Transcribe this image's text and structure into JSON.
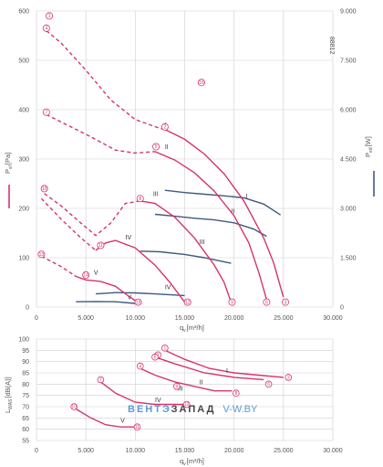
{
  "chart_data": [
    {
      "type": "line",
      "id_label": "88812",
      "xlabel": "q",
      "xlabel_sub": "v",
      "xlabel_unit": "[m³/h]",
      "ylabel": "P",
      "ylabel_sub": "sf",
      "ylabel_unit": "[Pa]",
      "y2label": "P",
      "y2label_sub": "ed",
      "y2label_unit": "[W]",
      "xlim": [
        0,
        30000
      ],
      "ylim": [
        0,
        600
      ],
      "y2lim": [
        0,
        9000
      ],
      "x_ticks": [
        0,
        5000,
        10000,
        15000,
        20000,
        25000,
        30000
      ],
      "x_tick_labels": [
        "0",
        "5.000",
        "10.000",
        "15.000",
        "20.000",
        "25.000",
        "30.000"
      ],
      "y_ticks": [
        0,
        100,
        200,
        300,
        400,
        500,
        600
      ],
      "y_tick_labels": [
        "0",
        "100",
        "200",
        "300",
        "400",
        "500",
        "600"
      ],
      "y2_ticks": [
        0,
        1500,
        3000,
        4500,
        6000,
        7500,
        9000
      ],
      "y2_tick_labels": [
        "0",
        "1.500",
        "3.000",
        "4.500",
        "6.000",
        "7.500",
        "9.000"
      ],
      "grid": true,
      "pressure_series": [
        {
          "name": "I",
          "label_at": [
            13000,
            365
          ],
          "dashed": [
            [
              1000,
              560
            ],
            [
              2500,
              535
            ],
            [
              5000,
              480
            ],
            [
              7500,
              420
            ],
            [
              10000,
              380
            ],
            [
              12500,
              362
            ],
            [
              13000,
              360
            ]
          ],
          "solid": [
            [
              13000,
              360
            ],
            [
              15000,
              340
            ],
            [
              17000,
              310
            ],
            [
              19000,
              270
            ],
            [
              21000,
              215
            ],
            [
              23000,
              140
            ],
            [
              24000,
              90
            ],
            [
              25000,
              20
            ]
          ]
        },
        {
          "name": "II",
          "label_at": [
            13000,
            320
          ],
          "dashed": [
            [
              1000,
              390
            ],
            [
              3000,
              370
            ],
            [
              5500,
              345
            ],
            [
              8000,
              318
            ],
            [
              10000,
              312
            ],
            [
              12000,
              315
            ]
          ],
          "solid": [
            [
              12000,
              315
            ],
            [
              14000,
              298
            ],
            [
              16000,
              272
            ],
            [
              18000,
              235
            ],
            [
              20000,
              185
            ],
            [
              21500,
              130
            ],
            [
              22500,
              70
            ],
            [
              23300,
              15
            ]
          ]
        },
        {
          "name": "III",
          "label_at": [
            11800,
            225
          ],
          "dashed": [
            [
              800,
              230
            ],
            [
              2500,
              205
            ],
            [
              4500,
              170
            ],
            [
              6000,
              145
            ],
            [
              7500,
              170
            ],
            [
              9000,
              210
            ],
            [
              10500,
              215
            ]
          ],
          "solid": [
            [
              10500,
              215
            ],
            [
              12000,
              210
            ],
            [
              14000,
              182
            ],
            [
              16000,
              140
            ],
            [
              18000,
              85
            ],
            [
              19000,
              50
            ],
            [
              19700,
              10
            ]
          ]
        },
        {
          "name": "IV",
          "label_at": [
            9000,
            137
          ],
          "dashed": [
            [
              500,
              220
            ],
            [
              2500,
              178
            ],
            [
              4500,
              140
            ],
            [
              6000,
              115
            ]
          ],
          "solid": [
            [
              6000,
              115
            ],
            [
              7000,
              130
            ],
            [
              8000,
              135
            ],
            [
              10000,
              120
            ],
            [
              12000,
              85
            ],
            [
              13500,
              50
            ],
            [
              15000,
              10
            ]
          ]
        },
        {
          "name": "V",
          "label_at": [
            5800,
            66
          ],
          "dashed": [
            [
              500,
              103
            ],
            [
              2500,
              82
            ],
            [
              4000,
              62
            ]
          ],
          "solid": [
            [
              4000,
              62
            ],
            [
              5000,
              55
            ],
            [
              6500,
              52
            ],
            [
              8000,
              42
            ],
            [
              9000,
              27
            ],
            [
              10000,
              13
            ]
          ]
        }
      ],
      "power_series": [
        {
          "name": "I",
          "label_at": [
            21200,
            3300
          ],
          "points": [
            [
              13000,
              3550
            ],
            [
              15000,
              3480
            ],
            [
              17000,
              3430
            ],
            [
              19000,
              3380
            ],
            [
              21000,
              3320
            ],
            [
              23000,
              3130
            ],
            [
              24700,
              2800
            ]
          ]
        },
        {
          "name": "II",
          "label_at": [
            19700,
            2850
          ],
          "points": [
            [
              12000,
              2820
            ],
            [
              14000,
              2760
            ],
            [
              16000,
              2700
            ],
            [
              18000,
              2650
            ],
            [
              20000,
              2560
            ],
            [
              22000,
              2370
            ],
            [
              23300,
              2150
            ]
          ]
        },
        {
          "name": "III",
          "label_at": [
            16500,
            1920
          ],
          "points": [
            [
              10500,
              1700
            ],
            [
              12500,
              1680
            ],
            [
              15000,
              1600
            ],
            [
              17000,
              1500
            ],
            [
              19700,
              1330
            ]
          ]
        },
        {
          "name": "IV",
          "label_at": [
            13000,
            540
          ],
          "points": [
            [
              6000,
              400
            ],
            [
              8000,
              440
            ],
            [
              10000,
              430
            ],
            [
              12000,
              400
            ],
            [
              15000,
              350
            ]
          ]
        },
        {
          "name": "V",
          "label_at": [
            9200,
            230
          ],
          "points": [
            [
              4000,
              160
            ],
            [
              6000,
              170
            ],
            [
              8000,
              160
            ],
            [
              10000,
              110
            ]
          ]
        }
      ],
      "point_markers": [
        {
          "num": "1",
          "x": 1300,
          "y": 590
        },
        {
          "num": "2",
          "x": 13000,
          "y": 365
        },
        {
          "num": "3",
          "x": 25200,
          "y": 10
        },
        {
          "num": "4",
          "x": 1000,
          "y": 565
        },
        {
          "num": "5",
          "x": 12100,
          "y": 325
        },
        {
          "num": "6",
          "x": 23300,
          "y": 10
        },
        {
          "num": "7",
          "x": 1000,
          "y": 395
        },
        {
          "num": "8",
          "x": 10500,
          "y": 220
        },
        {
          "num": "9",
          "x": 19800,
          "y": 10
        },
        {
          "num": "10",
          "x": 800,
          "y": 240
        },
        {
          "num": "11",
          "x": 6500,
          "y": 125
        },
        {
          "num": "12",
          "x": 15300,
          "y": 10
        },
        {
          "num": "13",
          "x": 500,
          "y": 107
        },
        {
          "num": "14",
          "x": 5000,
          "y": 65
        },
        {
          "num": "15",
          "x": 10300,
          "y": 10
        },
        {
          "num": "16",
          "x": 16700,
          "y": 455
        }
      ]
    },
    {
      "type": "line",
      "xlim": [
        0,
        30000
      ],
      "ylim": [
        55,
        100
      ],
      "xlabel": "q",
      "xlabel_sub": "v",
      "xlabel_unit": "[m³/h]",
      "ylabel": "L",
      "ylabel_sub": "WAS",
      "ylabel_unit": "[dB(A)]",
      "x_ticks": [
        0,
        5000,
        10000,
        15000,
        20000,
        25000,
        30000
      ],
      "x_tick_labels": [
        "0",
        "5.000",
        "10.000",
        "15.000",
        "20.000",
        "25.000",
        "30.000"
      ],
      "y_ticks": [
        55,
        60,
        65,
        70,
        75,
        80,
        85,
        90,
        95,
        100
      ],
      "y_tick_labels": [
        "55",
        "60",
        "65",
        "70",
        "75",
        "80",
        "85",
        "90",
        "95",
        "100"
      ],
      "grid": true,
      "series": [
        {
          "name": "I",
          "label_at": [
            19200,
            85
          ],
          "points": [
            [
              13000,
              95
            ],
            [
              15000,
              91
            ],
            [
              17500,
              87
            ],
            [
              20000,
              85
            ],
            [
              22500,
              84
            ],
            [
              25000,
              83
            ]
          ]
        },
        {
          "name": "II",
          "label_at": [
            16500,
            80
          ],
          "points": [
            [
              12000,
              92
            ],
            [
              14000,
              89
            ],
            [
              17000,
              85
            ],
            [
              20000,
              83
            ],
            [
              23000,
              82
            ]
          ]
        },
        {
          "name": "III",
          "label_at": [
            14300,
            77
          ],
          "points": [
            [
              10500,
              87
            ],
            [
              12000,
              84
            ],
            [
              14000,
              81
            ],
            [
              16000,
              79
            ],
            [
              18000,
              77
            ],
            [
              19800,
              77
            ]
          ]
        },
        {
          "name": "IV",
          "label_at": [
            12000,
            72
          ],
          "points": [
            [
              6500,
              81
            ],
            [
              8000,
              76
            ],
            [
              10000,
              72
            ],
            [
              12000,
              71
            ],
            [
              15000,
              71
            ]
          ]
        },
        {
          "name": "V",
          "label_at": [
            8500,
            63
          ],
          "points": [
            [
              4000,
              69
            ],
            [
              5500,
              65
            ],
            [
              7000,
              62
            ],
            [
              8500,
              61
            ],
            [
              10000,
              61
            ]
          ]
        }
      ],
      "point_markers": [
        {
          "num": "1",
          "x": 13000,
          "y": 96
        },
        {
          "num": "2",
          "x": 12300,
          "y": 93
        },
        {
          "num": "3",
          "x": 25500,
          "y": 83
        },
        {
          "num": "4",
          "x": 10500,
          "y": 88
        },
        {
          "num": "5",
          "x": 12000,
          "y": 92
        },
        {
          "num": "6",
          "x": 23500,
          "y": 80
        },
        {
          "num": "7",
          "x": 6500,
          "y": 82
        },
        {
          "num": "8",
          "x": 20200,
          "y": 76
        },
        {
          "num": "9",
          "x": 14200,
          "y": 79
        },
        {
          "num": "10",
          "x": 3800,
          "y": 70
        },
        {
          "num": "11",
          "x": 10200,
          "y": 61
        },
        {
          "num": "12",
          "x": 15200,
          "y": 71
        }
      ],
      "watermark": {
        "part1": "ВЕНТЭ",
        "part2": "ЗАПАД",
        "part3": "V-W.BY"
      }
    }
  ],
  "colors": {
    "pressure": "#d6336c",
    "power": "#3d5a80",
    "grid": "#cfcfcf",
    "watermark_blue": "#5b9bd5",
    "watermark_gray": "#444444"
  }
}
